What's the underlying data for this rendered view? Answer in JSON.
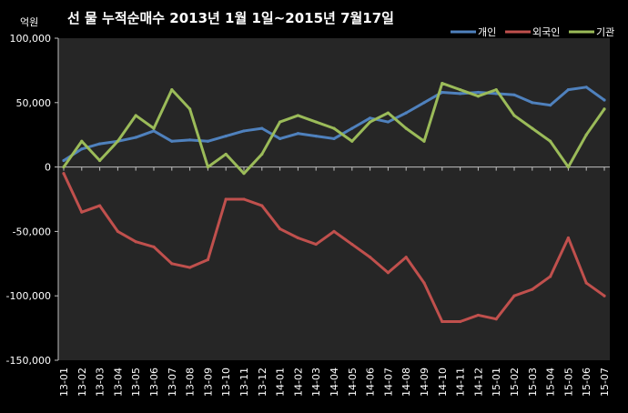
{
  "chart_data": {
    "type": "line",
    "title": "선 물 누적순매수 2013년 1월 1일~2015년 7월17일",
    "unit_label": "억원",
    "ylim": [
      -150000,
      100000
    ],
    "y_ticks": [
      {
        "value": 100000,
        "label": "100,000"
      },
      {
        "value": 50000,
        "label": "50,000"
      },
      {
        "value": 0,
        "label": "0"
      },
      {
        "value": -50000,
        "label": "-50,000"
      },
      {
        "value": -100000,
        "label": "-100,000"
      },
      {
        "value": -150000,
        "label": "-150,000"
      }
    ],
    "categories": [
      "13-01",
      "13-02",
      "13-03",
      "13-04",
      "13-05",
      "13-06",
      "13-07",
      "13-08",
      "13-09",
      "13-10",
      "13-11",
      "13-12",
      "14-01",
      "14-02",
      "14-03",
      "14-04",
      "14-05",
      "14-06",
      "14-07",
      "14-08",
      "14-09",
      "14-10",
      "14-11",
      "14-12",
      "15-01",
      "15-02",
      "15-03",
      "15-04",
      "15-05",
      "15-06",
      "15-07"
    ],
    "grid": false,
    "legend_position": "top-right",
    "series": [
      {
        "name": "개인",
        "color": "#4F81BD",
        "values": [
          5000,
          14000,
          18000,
          20000,
          23000,
          28000,
          20000,
          21000,
          20000,
          24000,
          28000,
          30000,
          22000,
          26000,
          24000,
          22000,
          30000,
          38000,
          35000,
          42000,
          50000,
          58000,
          57000,
          58000,
          57000,
          56000,
          50000,
          48000,
          60000,
          62000,
          52000
        ]
      },
      {
        "name": "외국인",
        "color": "#C0504D",
        "values": [
          -5000,
          -35000,
          -30000,
          -50000,
          -58000,
          -62000,
          -75000,
          -78000,
          -72000,
          -25000,
          -25000,
          -30000,
          -48000,
          -55000,
          -60000,
          -50000,
          -60000,
          -70000,
          -82000,
          -70000,
          -90000,
          -120000,
          -120000,
          -115000,
          -118000,
          -100000,
          -95000,
          -85000,
          -55000,
          -90000,
          -100000
        ]
      },
      {
        "name": "기관",
        "color": "#9BBB59",
        "values": [
          0,
          20000,
          5000,
          20000,
          40000,
          30000,
          60000,
          45000,
          0,
          10000,
          -5000,
          10000,
          35000,
          40000,
          35000,
          30000,
          20000,
          35000,
          42000,
          30000,
          20000,
          65000,
          60000,
          55000,
          60000,
          40000,
          30000,
          20000,
          0,
          25000,
          45000
        ]
      }
    ]
  }
}
